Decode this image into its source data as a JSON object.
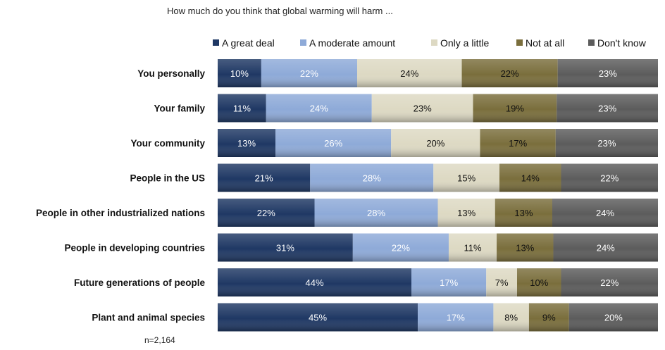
{
  "chart_data": {
    "type": "bar",
    "orientation": "horizontal",
    "stacked": true,
    "percent_of_total": true,
    "title": "How much do you think that global warming will harm ...",
    "note": "n=2,164",
    "legend_position": "top-right",
    "grid": false,
    "xlim": [
      0,
      100
    ],
    "categories": [
      "You personally",
      "Your family",
      "Your community",
      "People in the US",
      "People in other industrialized  nations",
      "People in developing countries",
      "Future generations of people",
      "Plant and animal species"
    ],
    "series": [
      {
        "name": "A great deal",
        "color": "#1f3864",
        "label_color": "#ffffff",
        "values": [
          10,
          11,
          13,
          21,
          22,
          31,
          44,
          45
        ]
      },
      {
        "name": "A moderate amount",
        "color": "#8eaad8",
        "label_color": "#ffffff",
        "values": [
          22,
          24,
          26,
          28,
          28,
          22,
          17,
          17
        ]
      },
      {
        "name": "Only a little",
        "color": "#ddd9c3",
        "label_color": "#111111",
        "values": [
          24,
          23,
          20,
          15,
          13,
          11,
          7,
          8
        ]
      },
      {
        "name": "Not at all",
        "color": "#7a6e3c",
        "label_color": "#111111",
        "values": [
          22,
          19,
          17,
          14,
          13,
          13,
          10,
          9
        ]
      },
      {
        "name": "Don't know",
        "color": "#5c5c5c",
        "label_color": "#ffffff",
        "values": [
          23,
          23,
          23,
          22,
          24,
          24,
          22,
          20
        ]
      }
    ]
  }
}
